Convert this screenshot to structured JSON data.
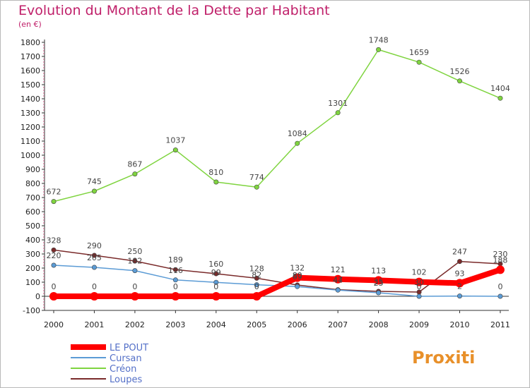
{
  "title": "Evolution du Montant de la Dette par Habitant",
  "unit": "(en €)",
  "logo": "Proxiti",
  "chart_data": {
    "type": "line",
    "x": [
      "2000",
      "2001",
      "2002",
      "2003",
      "2004",
      "2005",
      "2006",
      "2007",
      "2008",
      "2009",
      "2010",
      "2011"
    ],
    "ylim": [
      -100,
      1800
    ],
    "yticks": [
      -100,
      0,
      100,
      200,
      300,
      400,
      500,
      600,
      700,
      800,
      900,
      1000,
      1100,
      1200,
      1300,
      1400,
      1500,
      1600,
      1700,
      1800
    ],
    "grid": false,
    "legend": "bottom-left",
    "series": [
      {
        "name": "LE POUT",
        "color": "#ff0000",
        "values": [
          0,
          0,
          0,
          0,
          0,
          0,
          132,
          121,
          113,
          102,
          93,
          188
        ],
        "labels": [
          "0",
          "0",
          "0",
          "0",
          "0",
          "0",
          "132",
          "121",
          "113",
          "102",
          "93",
          "188"
        ]
      },
      {
        "name": "Cursan",
        "color": "#5b9bd5",
        "values": [
          220,
          205,
          182,
          116,
          99,
          82,
          69,
          44,
          25,
          0,
          2,
          0
        ],
        "labels": [
          "220",
          "205",
          "182",
          "116",
          "99",
          "82",
          "69",
          "44",
          "25",
          "0",
          "2",
          "0"
        ]
      },
      {
        "name": "Créon",
        "color": "#7fd43f",
        "values": [
          672,
          745,
          867,
          1037,
          810,
          774,
          1084,
          1301,
          1748,
          1659,
          1526,
          1404
        ],
        "labels": [
          "672",
          "745",
          "867",
          "1037",
          "810",
          "774",
          "1084",
          "1301",
          "1748",
          "1659",
          "1526",
          "1404"
        ]
      },
      {
        "name": "Loupes",
        "color": "#7a2a2a",
        "values": [
          328,
          290,
          250,
          189,
          160,
          128,
          80,
          47,
          35,
          30,
          247,
          230
        ],
        "labels": [
          "328",
          "290",
          "250",
          "189",
          "160",
          "128",
          "80",
          "47",
          "35",
          "30",
          "247",
          "230"
        ]
      }
    ]
  }
}
